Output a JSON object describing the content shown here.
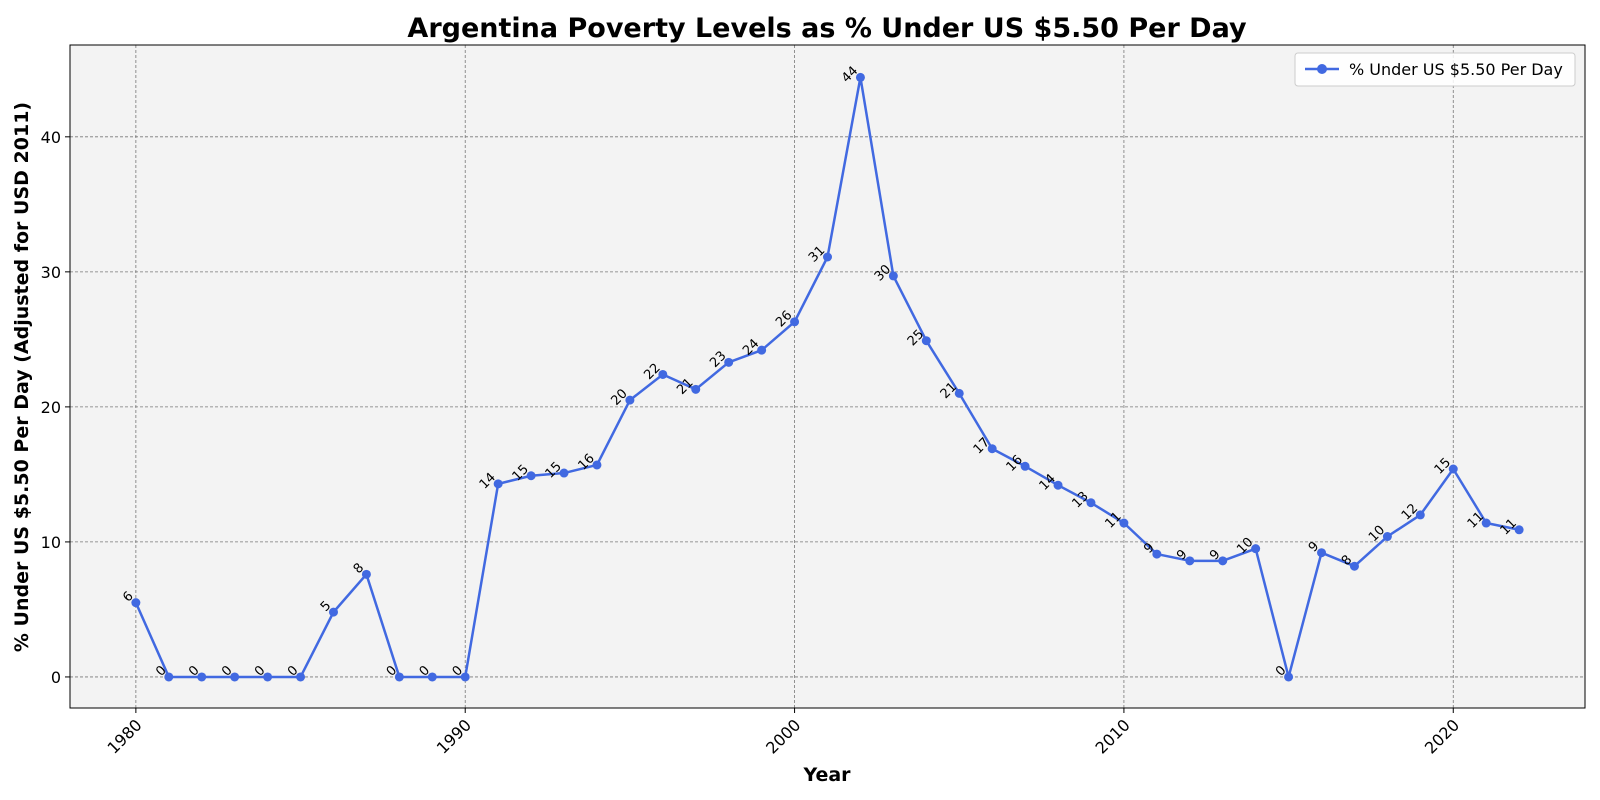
{
  "chart_data": {
    "type": "line",
    "title": "Argentina Poverty Levels as % Under US $5.50 Per Day",
    "xlabel": "Year",
    "ylabel": "% Under US $5.50 Per Day (Adjusted for USD 2011)",
    "xlim": [
      1978,
      2024
    ],
    "ylim": [
      -2.3,
      46.8
    ],
    "xticks": [
      1980,
      1990,
      2000,
      2010,
      2020
    ],
    "yticks": [
      0,
      10,
      20,
      30,
      40
    ],
    "grid": true,
    "legend_position": "top-right",
    "line_color": "#4169E1",
    "plot_background": "#f3f3f3",
    "series": [
      {
        "name": "% Under US $5.50 Per Day",
        "x": [
          1980,
          1981,
          1982,
          1983,
          1984,
          1985,
          1986,
          1987,
          1988,
          1989,
          1990,
          1991,
          1992,
          1993,
          1994,
          1995,
          1996,
          1997,
          1998,
          1999,
          2000,
          2001,
          2002,
          2003,
          2004,
          2005,
          2006,
          2007,
          2008,
          2009,
          2010,
          2011,
          2012,
          2013,
          2014,
          2015,
          2016,
          2017,
          2018,
          2019,
          2020,
          2021,
          2022
        ],
        "y": [
          5.5,
          0,
          0,
          0,
          0,
          0,
          4.8,
          7.6,
          0,
          0,
          0,
          14.3,
          14.9,
          15.1,
          15.7,
          20.5,
          22.4,
          21.3,
          23.3,
          24.2,
          26.3,
          31.1,
          44.4,
          29.7,
          24.9,
          21.0,
          16.9,
          15.6,
          14.2,
          12.9,
          11.4,
          9.1,
          8.6,
          8.6,
          9.5,
          0,
          9.2,
          8.2,
          10.4,
          12.0,
          15.4,
          11.4,
          10.9
        ],
        "labels": [
          "6",
          "0",
          "0",
          "0",
          "0",
          "0",
          "5",
          "8",
          "0",
          "0",
          "0",
          "14",
          "15",
          "15",
          "16",
          "20",
          "22",
          "21",
          "23",
          "24",
          "26",
          "31",
          "44",
          "30",
          "25",
          "21",
          "17",
          "16",
          "14",
          "13",
          "11",
          "9",
          "9",
          "9",
          "10",
          "0",
          "9",
          "8",
          "10",
          "12",
          "15",
          "11",
          "11"
        ]
      }
    ]
  }
}
